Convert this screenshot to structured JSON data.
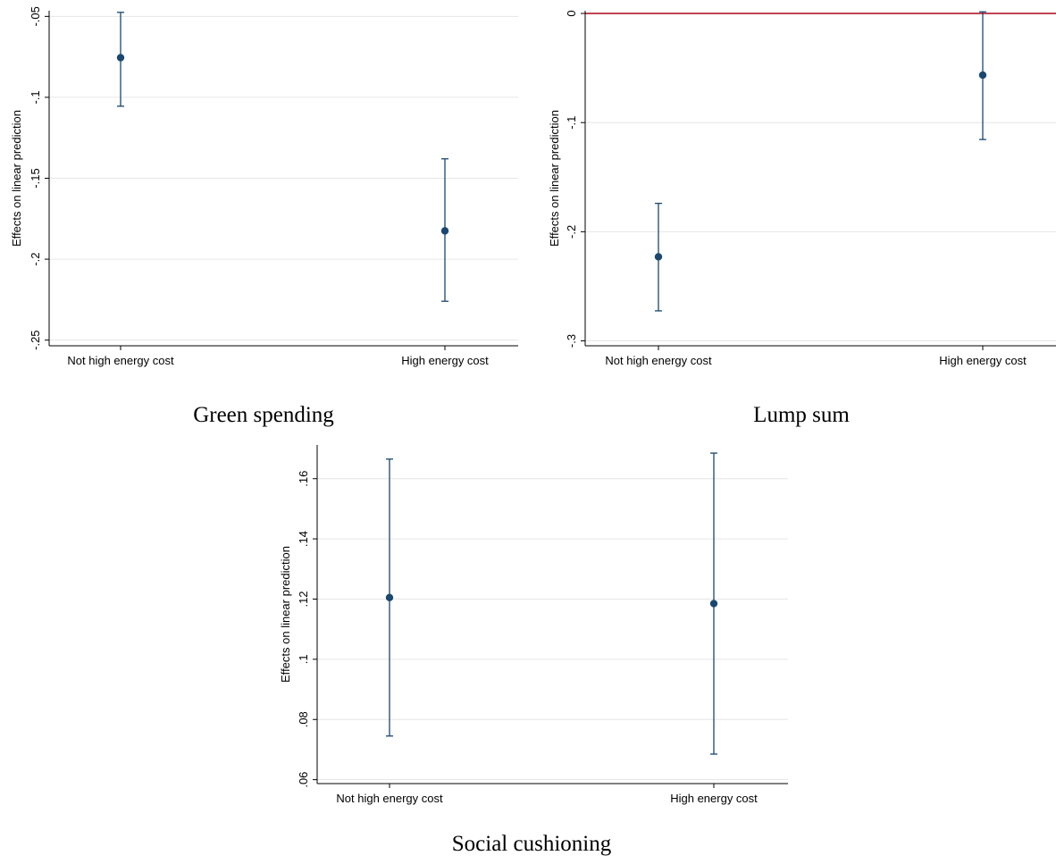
{
  "style": {
    "marker_color": "#1a476f",
    "reference_line_color": "#b2182b",
    "grid_color": "#e6e6e6"
  },
  "chart_data": [
    {
      "type": "scatter",
      "caption": "Green spending",
      "ylabel": "Effects on linear prediction",
      "categories": [
        "Not high energy cost",
        "High energy cost"
      ],
      "points": [
        {
          "x": "Not high energy cost",
          "y": -0.0755,
          "ci_low": -0.1055,
          "ci_high": -0.0475
        },
        {
          "x": "High energy cost",
          "y": -0.1825,
          "ci_low": -0.226,
          "ci_high": -0.138
        }
      ],
      "yticks": [
        -0.05,
        -0.1,
        -0.15,
        -0.2,
        -0.25
      ],
      "ytick_labels": [
        "-.05",
        "-.1",
        "-.15",
        "-.2",
        "-.25"
      ],
      "ylim": [
        -0.2535,
        -0.0465
      ],
      "reference_line": null,
      "grid": true
    },
    {
      "type": "scatter",
      "caption": "Lump sum",
      "ylabel": "Effects on linear prediction",
      "categories": [
        "Not high energy cost",
        "High energy cost"
      ],
      "points": [
        {
          "x": "Not high energy cost",
          "y": -0.223,
          "ci_low": -0.2725,
          "ci_high": -0.174
        },
        {
          "x": "High energy cost",
          "y": -0.0565,
          "ci_low": -0.1155,
          "ci_high": 0.0015
        }
      ],
      "yticks": [
        0,
        -0.1,
        -0.2,
        -0.3
      ],
      "ytick_labels": [
        "0",
        "-.1",
        "-.2",
        "-.3"
      ],
      "ylim": [
        -0.3045,
        0.0025
      ],
      "reference_line": 0,
      "grid": true
    },
    {
      "type": "scatter",
      "caption": "Social cushioning",
      "ylabel": "Effects on linear prediction",
      "categories": [
        "Not high energy cost",
        "High energy cost"
      ],
      "points": [
        {
          "x": "Not high energy cost",
          "y": 0.1205,
          "ci_low": 0.0745,
          "ci_high": 0.1665
        },
        {
          "x": "High energy cost",
          "y": 0.1185,
          "ci_low": 0.0685,
          "ci_high": 0.1685
        }
      ],
      "yticks": [
        0.06,
        0.08,
        0.1,
        0.12,
        0.14,
        0.16
      ],
      "ytick_labels": [
        ".06",
        ".08",
        ".1",
        ".12",
        ".14",
        ".16"
      ],
      "ylim": [
        0.0587,
        0.1712
      ],
      "reference_line": null,
      "grid": true
    }
  ]
}
